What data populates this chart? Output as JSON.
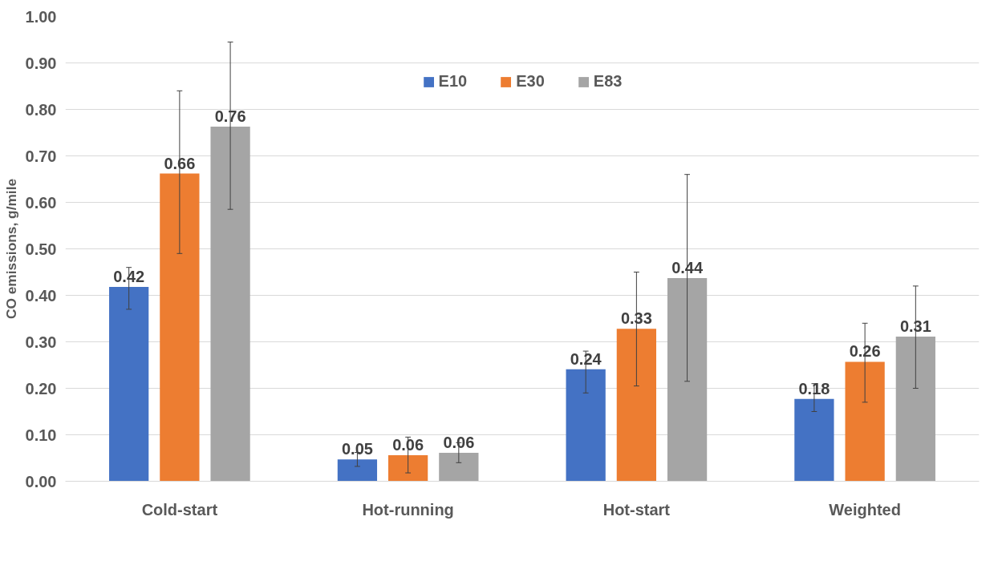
{
  "chart_data": {
    "type": "bar",
    "ylabel": "CO emissions, g/mile",
    "categories": [
      "Cold-start",
      "Hot-running",
      "Hot-start",
      "Weighted"
    ],
    "series": [
      {
        "name": "E10",
        "color": "#4472c4",
        "values": [
          0.418,
          0.047,
          0.241,
          0.177
        ],
        "value_labels": [
          "0.42",
          "0.05",
          "0.24",
          "0.18"
        ],
        "errors": [
          [
            0.37,
            0.46
          ],
          [
            0.032,
            0.062
          ],
          [
            0.19,
            0.28
          ],
          [
            0.15,
            0.21
          ]
        ]
      },
      {
        "name": "E30",
        "color": "#ed7d31",
        "values": [
          0.662,
          0.056,
          0.328,
          0.257
        ],
        "value_labels": [
          "0.66",
          "0.06",
          "0.33",
          "0.26"
        ],
        "errors": [
          [
            0.49,
            0.84
          ],
          [
            0.018,
            0.095
          ],
          [
            0.205,
            0.45
          ],
          [
            0.17,
            0.34
          ]
        ]
      },
      {
        "name": "E83",
        "color": "#a5a5a5",
        "values": [
          0.763,
          0.061,
          0.437,
          0.311
        ],
        "value_labels": [
          "0.76",
          "0.06",
          "0.44",
          "0.31"
        ],
        "errors": [
          [
            0.585,
            0.945
          ],
          [
            0.04,
            0.083
          ],
          [
            0.215,
            0.66
          ],
          [
            0.2,
            0.42
          ]
        ]
      }
    ],
    "ylim": [
      0,
      1.0
    ],
    "yticks": [
      {
        "value": 0,
        "label": "0.00"
      },
      {
        "value": 0.1,
        "label": "0.10"
      },
      {
        "value": 0.2,
        "label": "0.20"
      },
      {
        "value": 0.3,
        "label": "0.30"
      },
      {
        "value": 0.4,
        "label": "0.40"
      },
      {
        "value": 0.5,
        "label": "0.50"
      },
      {
        "value": 0.6,
        "label": "0.60"
      },
      {
        "value": 0.7,
        "label": "0.70"
      },
      {
        "value": 0.8,
        "label": "0.80"
      },
      {
        "value": 0.9,
        "label": "0.90"
      },
      {
        "value": 1.0,
        "label": "1.00"
      }
    ],
    "grid": "y",
    "legend": "top"
  }
}
